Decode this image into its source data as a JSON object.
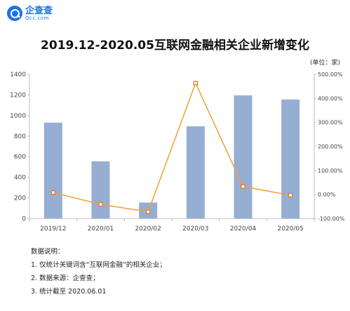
{
  "brand": {
    "name": "企查查",
    "domain": "Qcc.com",
    "color": "#1a73e8"
  },
  "chart_data": {
    "type": "bar",
    "title": "2019.12-2020.05互联网金融相关企业新增变化",
    "unit_label": "(单位：家)",
    "categories": [
      "2019/12",
      "2020/01",
      "2020/02",
      "2020/03",
      "2020/04",
      "2020/05"
    ],
    "ylim": [
      0,
      1400
    ],
    "y_ticks": [
      0,
      200,
      400,
      600,
      800,
      1000,
      1200,
      1400
    ],
    "y2lim": [
      -100,
      500
    ],
    "y2_ticks": [
      -100,
      0,
      100,
      200,
      300,
      400,
      500
    ],
    "y2_tick_labels": [
      "-100.00%",
      "0.00%",
      "100.00%",
      "200.00%",
      "300.00%",
      "400.00%",
      "500.00%"
    ],
    "series": [
      {
        "type": "bar",
        "axis": "left",
        "color": "#97aed3",
        "values": [
          930,
          555,
          155,
          895,
          1195,
          1155
        ]
      },
      {
        "type": "line",
        "axis": "right",
        "color": "#f4a030",
        "values": [
          8,
          -41,
          -72,
          463,
          33,
          -3
        ]
      }
    ],
    "grid": false
  },
  "notes": {
    "heading": "数据说明：",
    "items": [
      "1. 仅统计关键词含“互联网金融”的相关企业；",
      "2. 数据来源：企查查；",
      "3. 统计截至 2020.06.01"
    ]
  }
}
